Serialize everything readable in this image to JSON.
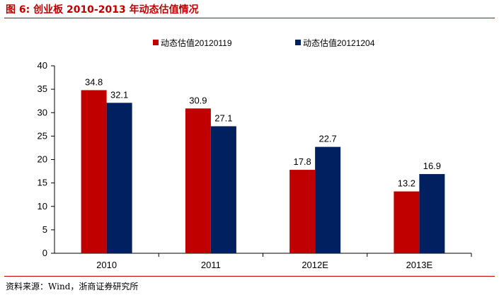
{
  "header": {
    "title": "图 6: 创业板 2010-2013 年动态估值情况"
  },
  "footer": {
    "source": "资料来源：Wind，浙商证券研究所"
  },
  "colors": {
    "accent": "#c00000",
    "series1": "#c00000",
    "series2": "#002060"
  },
  "chart_data": {
    "type": "bar",
    "title": "",
    "xlabel": "",
    "ylabel": "",
    "categories": [
      "2010",
      "2011",
      "2012E",
      "2013E"
    ],
    "series": [
      {
        "name": "动态估值20120119",
        "values": [
          34.8,
          30.9,
          17.8,
          13.2
        ],
        "color": "#c00000"
      },
      {
        "name": "动态估值20121204",
        "values": [
          32.1,
          27.1,
          22.7,
          16.9
        ],
        "color": "#002060"
      }
    ],
    "ylim": [
      0,
      40
    ],
    "yticks": [
      0,
      5,
      10,
      15,
      20,
      25,
      30,
      35,
      40
    ],
    "legend": "top",
    "grid": false,
    "data_labels": true
  }
}
